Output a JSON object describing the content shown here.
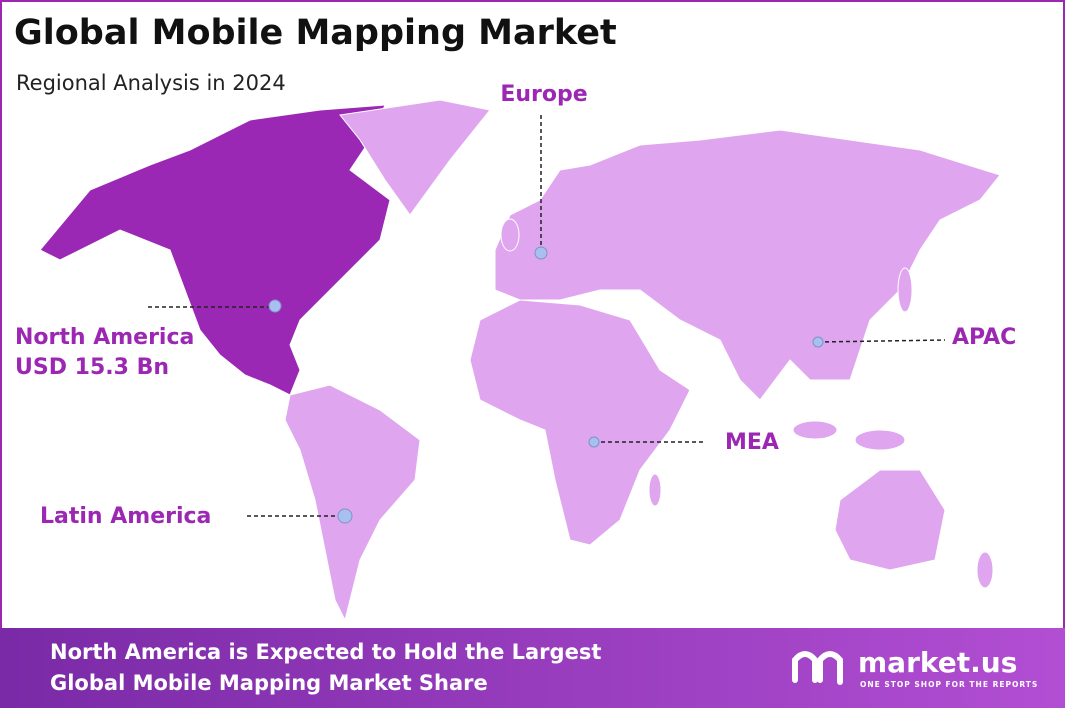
{
  "header": {
    "title": "Global Mobile Mapping Market",
    "subtitle": "Regional Analysis in 2024"
  },
  "regions": [
    {
      "label": "Europe"
    },
    {
      "label": "North America",
      "value": "USD 15.3 Bn"
    },
    {
      "label": "Latin America"
    },
    {
      "label": "MEA"
    },
    {
      "label": "APAC"
    }
  ],
  "footer": {
    "line1": "North America is Expected to Hold the Largest",
    "line2": "Global Mobile Mapping Market Share",
    "brand": "market.us",
    "tagline": "ONE STOP SHOP FOR THE REPORTS"
  }
}
